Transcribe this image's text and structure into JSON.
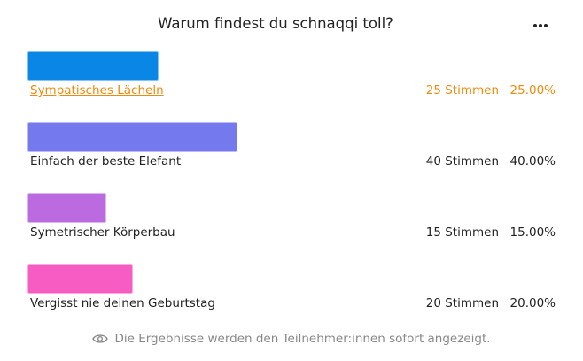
{
  "poll": {
    "question": "Warum findest du schnaqqi toll?",
    "menu_icon": "more-horizontal-icon",
    "options": [
      {
        "label": "Sympatisches Lächeln",
        "votes": "25 Stimmen",
        "percent": "25.00%",
        "share": 0.25,
        "color": "#0a86e6",
        "highlighted": true
      },
      {
        "label": "Einfach der beste Elefant",
        "votes": "40 Stimmen",
        "percent": "40.00%",
        "share": 0.4,
        "color": "#7479ee",
        "highlighted": false
      },
      {
        "label": "Symetrischer Körperbau",
        "votes": "15 Stimmen",
        "percent": "15.00%",
        "share": 0.15,
        "color": "#bb6ae0",
        "highlighted": false
      },
      {
        "label": "Vergisst nie deinen Geburtstag",
        "votes": "20 Stimmen",
        "percent": "20.00%",
        "share": 0.2,
        "color": "#f65cc2",
        "highlighted": false
      }
    ],
    "footer_icon": "eye-icon",
    "footer_text": "Die Ergebnisse werden den Teilnehmer:innen sofort angezeigt."
  }
}
